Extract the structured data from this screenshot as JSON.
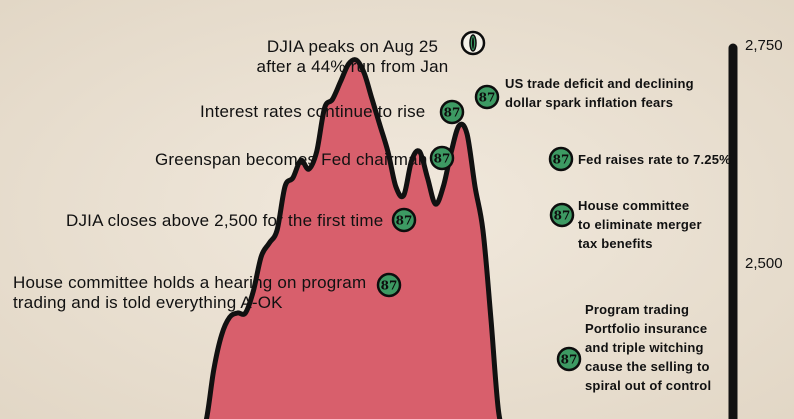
{
  "chart_data": {
    "type": "area",
    "ylim": [
      2150,
      2780
    ],
    "y_ticks": [
      2500,
      2750
    ],
    "x": [
      0,
      4,
      8,
      12,
      16,
      20,
      24,
      28,
      32,
      36,
      40,
      44,
      48,
      52,
      56,
      60,
      64,
      68,
      72,
      76,
      80,
      84,
      88,
      92,
      96,
      100,
      104,
      108,
      112,
      116,
      120,
      124,
      128,
      132,
      136,
      140,
      144,
      148,
      152,
      156,
      160,
      164,
      168,
      172,
      176,
      180,
      184,
      188,
      192,
      196,
      200,
      204,
      208,
      212,
      216,
      220,
      224,
      228,
      232,
      236,
      240
    ],
    "values": [
      2150,
      2175,
      2215,
      2205,
      2235,
      2290,
      2310,
      2305,
      2245,
      2210,
      2185,
      2220,
      2225,
      2285,
      2320,
      2380,
      2420,
      2440,
      2445,
      2445,
      2470,
      2510,
      2525,
      2540,
      2590,
      2600,
      2620,
      2610,
      2630,
      2680,
      2690,
      2710,
      2730,
      2735,
      2720,
      2690,
      2660,
      2630,
      2590,
      2580,
      2620,
      2630,
      2600,
      2570,
      2590,
      2630,
      2660,
      2650,
      2590,
      2540,
      2440,
      2330,
      2230,
      2150,
      2150,
      2150,
      2150,
      2150,
      2150,
      2150,
      2150
    ],
    "annotations": [
      {
        "text": "DJIA peaks on Aug 25\nafter a 44% run from Jan",
        "badge": "peak-marker"
      },
      {
        "text": "US trade deficit and declining\ndollar spark inflation fears",
        "badge": "87"
      },
      {
        "text": "Interest rates continue to rise",
        "badge": "87"
      },
      {
        "text": "Greenspan becomes Fed chairman",
        "badge": "87"
      },
      {
        "text": "Fed raises rate to 7.25%",
        "badge": "87"
      },
      {
        "text": "DJIA closes above 2,500 for the first time",
        "badge": "87"
      },
      {
        "text": "House committee\nto eliminate merger\ntax benefits",
        "badge": "87"
      },
      {
        "text": "House committee holds a hearing on program\ntrading and is told everything A-OK",
        "badge": "87"
      },
      {
        "text": "Program trading\nPortfolio insurance\nand triple witching\ncause the selling to\nspiral out of control",
        "badge": "87"
      }
    ]
  },
  "colors": {
    "fill": "#d85f6c",
    "outline": "#111111",
    "badge_fill": "#3d9a63",
    "background": "#ece3d6"
  }
}
